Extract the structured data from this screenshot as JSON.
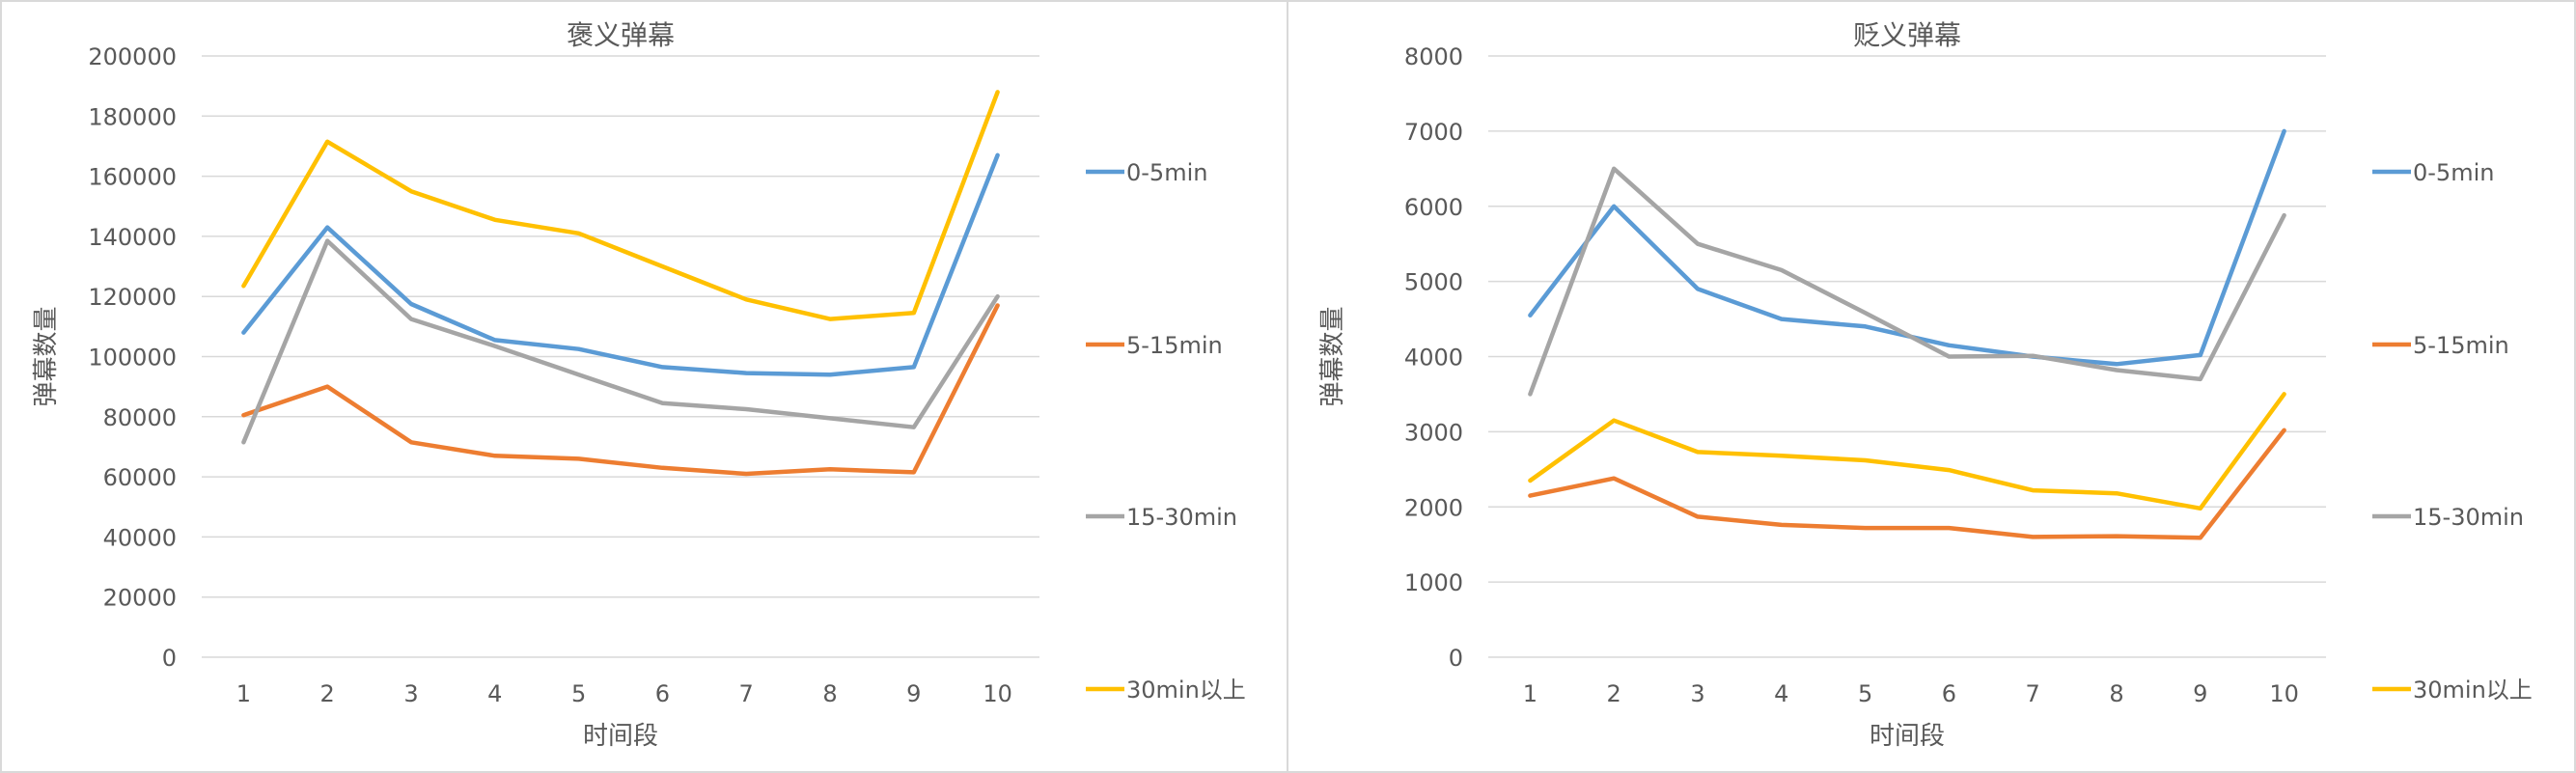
{
  "chart_data": [
    {
      "type": "line",
      "title": "褒义弹幕",
      "xlabel": "时间段",
      "ylabel": "弹幕数量",
      "categories": [
        "1",
        "2",
        "3",
        "4",
        "5",
        "6",
        "7",
        "8",
        "9",
        "10"
      ],
      "ylim": [
        0,
        200000
      ],
      "yticks": [
        "0",
        "20000",
        "40000",
        "60000",
        "80000",
        "100000",
        "120000",
        "140000",
        "160000",
        "180000",
        "200000"
      ],
      "grid": true,
      "legend": "right",
      "series": [
        {
          "name": "0-5min",
          "color": "#5B9BD5",
          "values": [
            108000,
            143000,
            117500,
            105500,
            102500,
            96500,
            94500,
            94000,
            96500,
            167000
          ]
        },
        {
          "name": "5-15min",
          "color": "#ED7D31",
          "values": [
            80500,
            90000,
            71500,
            67000,
            66000,
            63000,
            61000,
            62500,
            61500,
            117000
          ]
        },
        {
          "name": "15-30min",
          "color": "#A5A5A5",
          "values": [
            71500,
            138500,
            112500,
            103500,
            94000,
            84500,
            82500,
            79500,
            76500,
            120000
          ]
        },
        {
          "name": "30min以上",
          "color": "#FFC000",
          "values": [
            123500,
            171500,
            155000,
            145500,
            141000,
            130000,
            119000,
            112500,
            114500,
            188000
          ]
        }
      ]
    },
    {
      "type": "line",
      "title": "贬义弹幕",
      "xlabel": "时间段",
      "ylabel": "弹幕数量",
      "categories": [
        "1",
        "2",
        "3",
        "4",
        "5",
        "6",
        "7",
        "8",
        "9",
        "10"
      ],
      "ylim": [
        0,
        8000
      ],
      "yticks": [
        "0",
        "1000",
        "2000",
        "3000",
        "4000",
        "5000",
        "6000",
        "7000",
        "8000"
      ],
      "grid": true,
      "legend": "right",
      "series": [
        {
          "name": "0-5min",
          "color": "#5B9BD5",
          "values": [
            4550,
            6000,
            4900,
            4500,
            4400,
            4150,
            4000,
            3900,
            4020,
            7000
          ]
        },
        {
          "name": "5-15min",
          "color": "#ED7D31",
          "values": [
            2150,
            2380,
            1870,
            1760,
            1720,
            1720,
            1600,
            1610,
            1590,
            3020
          ]
        },
        {
          "name": "15-30min",
          "color": "#A5A5A5",
          "values": [
            3500,
            6500,
            5500,
            5150,
            4580,
            4000,
            4010,
            3820,
            3700,
            5880
          ]
        },
        {
          "name": "30min以上",
          "color": "#FFC000",
          "values": [
            2350,
            3150,
            2730,
            2680,
            2620,
            2490,
            2220,
            2180,
            1980,
            3500
          ]
        }
      ]
    }
  ]
}
